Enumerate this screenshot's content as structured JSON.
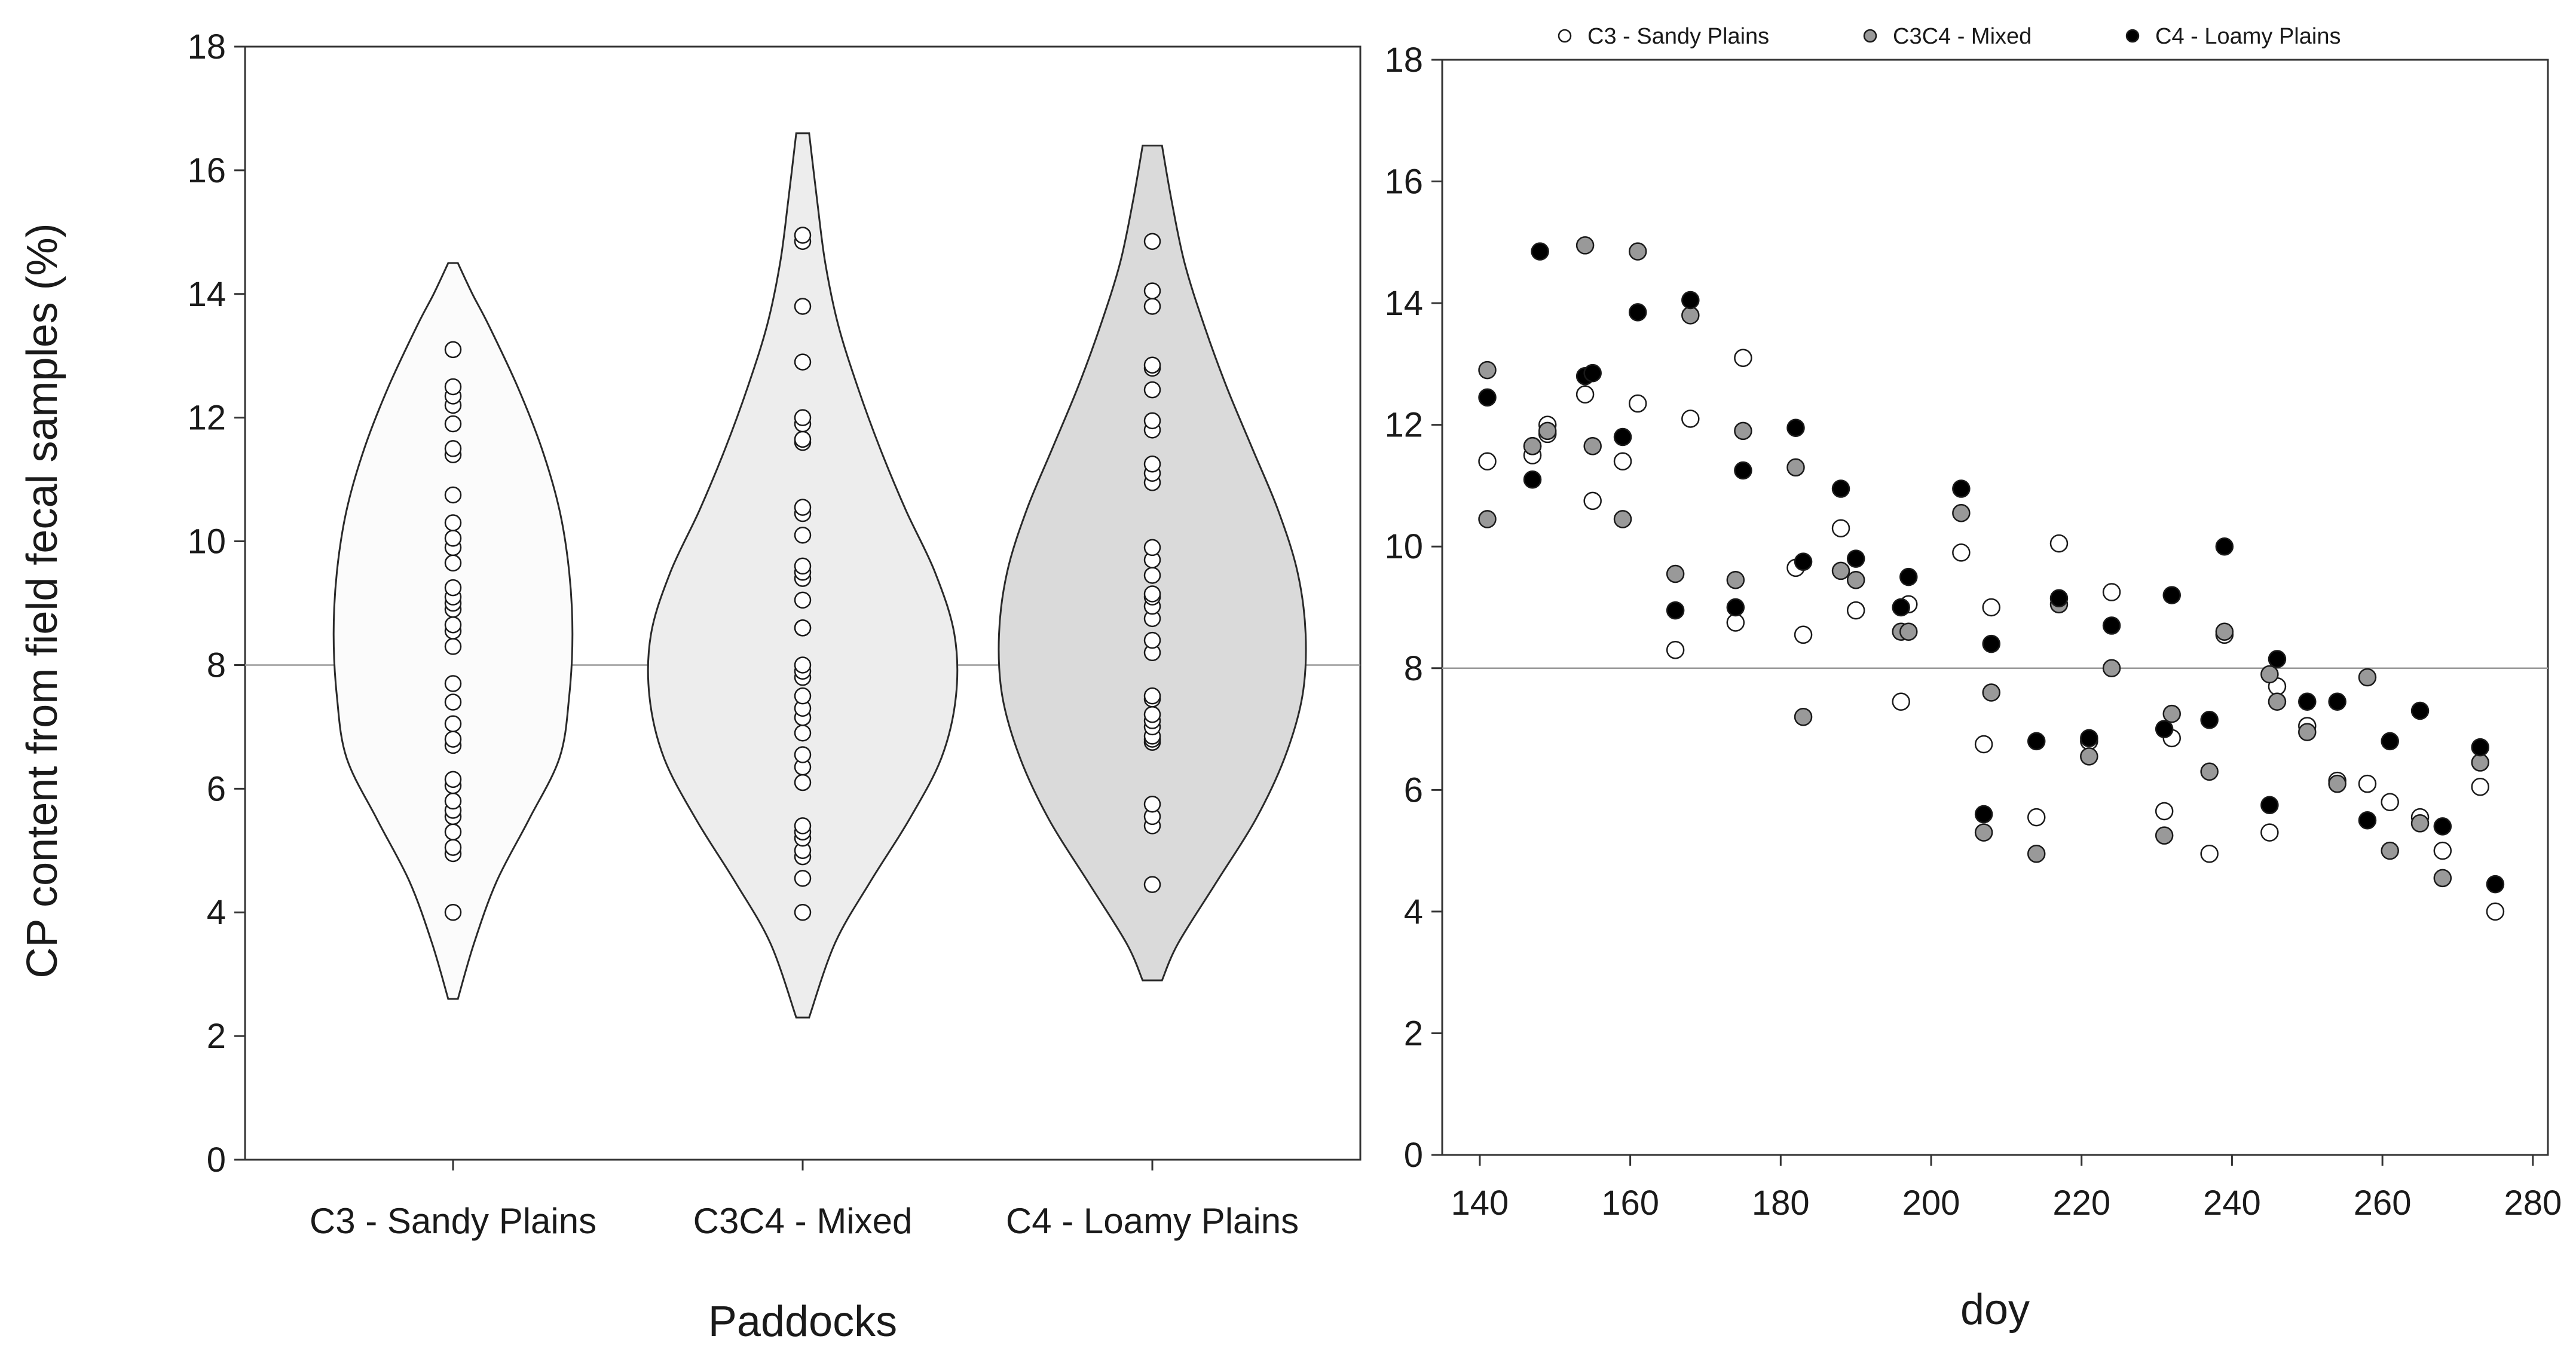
{
  "figure": {
    "left_panel": {
      "ylabel": "CP content from field fecal samples (%)",
      "xlabel": "Paddocks"
    },
    "right_panel": {
      "xlabel": "doy"
    }
  },
  "chart_data": [
    {
      "type": "violin",
      "ylabel": "CP content from field fecal samples (%)",
      "xlabel": "Paddocks",
      "ylim": [
        0,
        18
      ],
      "yticks": [
        0,
        2,
        4,
        6,
        8,
        10,
        12,
        14,
        16,
        18
      ],
      "reference_line": 8,
      "categories": [
        {
          "label": "C3 - Sandy Plains",
          "fill": "#fbfbfb",
          "range": [
            2.6,
            14.5
          ],
          "profile": [
            [
              2.6,
              0.03
            ],
            [
              3.5,
              0.13
            ],
            [
              4.5,
              0.27
            ],
            [
              5.5,
              0.47
            ],
            [
              6.5,
              0.66
            ],
            [
              7.5,
              0.72
            ],
            [
              8.5,
              0.74
            ],
            [
              9.5,
              0.72
            ],
            [
              10.5,
              0.66
            ],
            [
              11.5,
              0.55
            ],
            [
              12.5,
              0.4
            ],
            [
              13.5,
              0.22
            ],
            [
              14.0,
              0.12
            ],
            [
              14.5,
              0.03
            ]
          ],
          "values": [
            4.0,
            4.95,
            5.05,
            5.3,
            5.55,
            5.65,
            5.8,
            6.05,
            6.15,
            6.7,
            6.8,
            7.05,
            7.4,
            7.7,
            8.3,
            8.55,
            8.65,
            8.9,
            9.0,
            9.1,
            9.25,
            9.65,
            9.9,
            10.05,
            10.3,
            10.75,
            11.4,
            11.5,
            11.9,
            12.2,
            12.35,
            12.5,
            13.1
          ]
        },
        {
          "label": "C3C4 - Mixed",
          "fill": "#ededed",
          "range": [
            2.3,
            16.6
          ],
          "profile": [
            [
              2.3,
              0.04
            ],
            [
              3.5,
              0.2
            ],
            [
              4.5,
              0.42
            ],
            [
              5.5,
              0.66
            ],
            [
              6.5,
              0.86
            ],
            [
              7.5,
              0.95
            ],
            [
              8.5,
              0.94
            ],
            [
              9.5,
              0.82
            ],
            [
              10.5,
              0.64
            ],
            [
              11.5,
              0.48
            ],
            [
              12.5,
              0.34
            ],
            [
              13.5,
              0.22
            ],
            [
              14.5,
              0.14
            ],
            [
              15.5,
              0.09
            ],
            [
              16.6,
              0.04
            ]
          ],
          "values": [
            4.0,
            4.55,
            4.9,
            5.0,
            5.2,
            5.3,
            5.4,
            6.1,
            6.35,
            6.55,
            6.9,
            7.15,
            7.3,
            7.5,
            7.8,
            7.9,
            8.0,
            8.6,
            8.6,
            9.05,
            9.4,
            9.5,
            9.6,
            10.1,
            10.45,
            10.55,
            11.6,
            11.65,
            11.9,
            12.0,
            12.9,
            13.8,
            14.85,
            14.95
          ]
        },
        {
          "label": "C4 - Loamy Plains",
          "fill": "#dadada",
          "range": [
            2.9,
            16.4
          ],
          "profile": [
            [
              2.9,
              0.06
            ],
            [
              3.5,
              0.16
            ],
            [
              4.5,
              0.4
            ],
            [
              5.5,
              0.64
            ],
            [
              6.5,
              0.82
            ],
            [
              7.5,
              0.93
            ],
            [
              8.5,
              0.95
            ],
            [
              9.5,
              0.9
            ],
            [
              10.5,
              0.78
            ],
            [
              11.5,
              0.62
            ],
            [
              12.5,
              0.46
            ],
            [
              13.5,
              0.32
            ],
            [
              14.5,
              0.2
            ],
            [
              15.5,
              0.12
            ],
            [
              16.4,
              0.06
            ]
          ],
          "values": [
            4.45,
            5.4,
            5.55,
            5.75,
            6.75,
            6.8,
            6.85,
            7.0,
            7.1,
            7.2,
            7.45,
            7.5,
            8.2,
            8.4,
            8.75,
            8.95,
            9.1,
            9.15,
            9.45,
            9.7,
            9.9,
            10.95,
            11.1,
            11.25,
            11.8,
            11.95,
            12.45,
            12.8,
            12.85,
            13.8,
            14.05,
            14.85
          ]
        }
      ]
    },
    {
      "type": "scatter",
      "xlabel": "doy",
      "xlim": [
        135,
        282
      ],
      "ylim": [
        0,
        18
      ],
      "xticks": [
        140,
        160,
        180,
        200,
        220,
        240,
        260,
        280
      ],
      "yticks": [
        0,
        2,
        4,
        6,
        8,
        10,
        12,
        14,
        16,
        18
      ],
      "reference_line": 8,
      "series": [
        {
          "name": "C3 - Sandy Plains",
          "fill": "#ffffff",
          "points": [
            [
              141,
              11.4
            ],
            [
              147,
              11.5
            ],
            [
              147,
              11.65
            ],
            [
              149,
              11.85
            ],
            [
              149,
              12.0
            ],
            [
              154,
              12.5
            ],
            [
              155,
              10.75
            ],
            [
              159,
              11.4
            ],
            [
              161,
              12.35
            ],
            [
              166,
              8.3
            ],
            [
              168,
              12.1
            ],
            [
              174,
              8.75
            ],
            [
              175,
              13.1
            ],
            [
              182,
              9.65
            ],
            [
              183,
              8.55
            ],
            [
              188,
              10.3
            ],
            [
              190,
              8.95
            ],
            [
              196,
              7.45
            ],
            [
              197,
              9.05
            ],
            [
              204,
              9.9
            ],
            [
              207,
              6.75
            ],
            [
              208,
              9.0
            ],
            [
              214,
              5.55
            ],
            [
              217,
              10.05
            ],
            [
              221,
              6.8
            ],
            [
              224,
              9.25
            ],
            [
              231,
              5.65
            ],
            [
              232,
              6.85
            ],
            [
              237,
              4.95
            ],
            [
              239,
              8.55
            ],
            [
              245,
              5.3
            ],
            [
              246,
              7.7
            ],
            [
              250,
              7.05
            ],
            [
              254,
              6.15
            ],
            [
              258,
              6.1
            ],
            [
              261,
              5.8
            ],
            [
              265,
              5.55
            ],
            [
              268,
              5.0
            ],
            [
              273,
              6.05
            ],
            [
              275,
              4.0
            ]
          ]
        },
        {
          "name": "C3C4 - Mixed",
          "fill": "#999999",
          "points": [
            [
              141,
              12.9
            ],
            [
              141,
              10.45
            ],
            [
              147,
              11.65
            ],
            [
              149,
              11.9
            ],
            [
              154,
              14.95
            ],
            [
              155,
              11.65
            ],
            [
              159,
              10.45
            ],
            [
              161,
              14.85
            ],
            [
              166,
              9.55
            ],
            [
              168,
              13.8
            ],
            [
              174,
              9.45
            ],
            [
              175,
              11.9
            ],
            [
              182,
              11.3
            ],
            [
              183,
              7.2
            ],
            [
              188,
              9.6
            ],
            [
              190,
              9.45
            ],
            [
              196,
              8.6
            ],
            [
              197,
              8.6
            ],
            [
              204,
              10.55
            ],
            [
              207,
              5.3
            ],
            [
              208,
              7.6
            ],
            [
              214,
              4.95
            ],
            [
              217,
              9.05
            ],
            [
              221,
              6.55
            ],
            [
              224,
              8.0
            ],
            [
              231,
              5.25
            ],
            [
              232,
              7.25
            ],
            [
              237,
              6.3
            ],
            [
              239,
              8.6
            ],
            [
              245,
              7.9
            ],
            [
              246,
              7.45
            ],
            [
              250,
              6.95
            ],
            [
              254,
              6.1
            ],
            [
              258,
              7.85
            ],
            [
              261,
              5.0
            ],
            [
              265,
              5.45
            ],
            [
              268,
              4.55
            ],
            [
              273,
              6.45
            ]
          ]
        },
        {
          "name": "C4 - Loamy Plains",
          "fill": "#000000",
          "points": [
            [
              141,
              12.45
            ],
            [
              147,
              11.1
            ],
            [
              148,
              14.85
            ],
            [
              154,
              12.8
            ],
            [
              155,
              12.85
            ],
            [
              159,
              11.8
            ],
            [
              161,
              13.85
            ],
            [
              166,
              8.95
            ],
            [
              168,
              14.05
            ],
            [
              174,
              9.0
            ],
            [
              175,
              11.25
            ],
            [
              182,
              11.95
            ],
            [
              183,
              9.75
            ],
            [
              188,
              10.95
            ],
            [
              190,
              9.8
            ],
            [
              196,
              9.0
            ],
            [
              197,
              9.5
            ],
            [
              204,
              10.95
            ],
            [
              207,
              5.6
            ],
            [
              208,
              8.4
            ],
            [
              214,
              6.8
            ],
            [
              217,
              9.15
            ],
            [
              221,
              6.85
            ],
            [
              224,
              8.7
            ],
            [
              231,
              7.0
            ],
            [
              232,
              9.2
            ],
            [
              237,
              7.15
            ],
            [
              239,
              10.0
            ],
            [
              245,
              5.75
            ],
            [
              246,
              8.15
            ],
            [
              250,
              7.45
            ],
            [
              254,
              7.45
            ],
            [
              258,
              5.5
            ],
            [
              261,
              6.8
            ],
            [
              265,
              7.3
            ],
            [
              268,
              5.4
            ],
            [
              273,
              6.7
            ],
            [
              275,
              4.45
            ]
          ]
        }
      ],
      "legend": {
        "location": "top",
        "entries": [
          "C3 - Sandy Plains",
          "C3C4 - Mixed",
          "C4 - Loamy Plains"
        ]
      }
    }
  ]
}
